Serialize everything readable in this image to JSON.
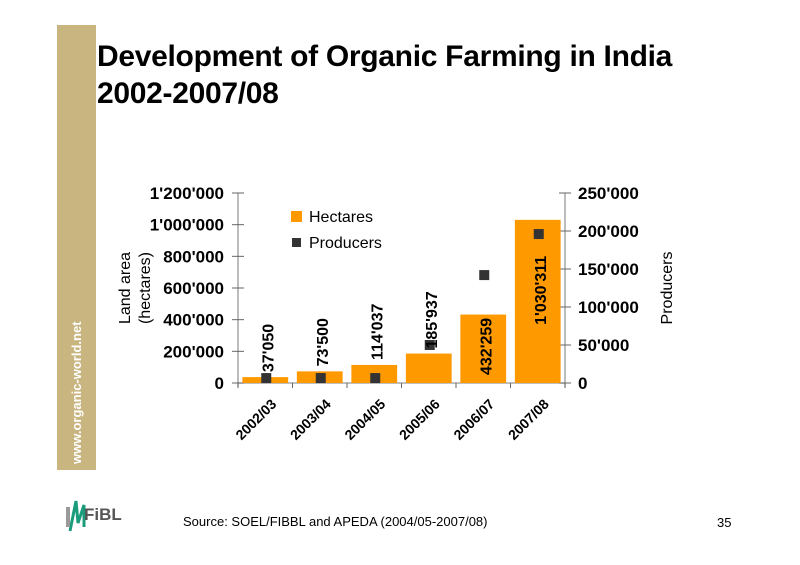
{
  "slide": {
    "title_line1": "Development of Organic Farming in India",
    "title_line2": "2002-2007/08",
    "side_url": "www.organic-world.net",
    "logo_text": "FiBL",
    "source": "Source: SOEL/FIBBL and APEDA (2004/05-2007/08)",
    "page_number": "35"
  },
  "colors": {
    "side_bar": "#c8b580",
    "hectares": "#ff9900",
    "producers": "#333333",
    "axis": "#999999"
  },
  "chart_data": {
    "type": "bar",
    "title": "Development of Organic Farming in India 2002-2007/08",
    "categories": [
      "2002/03",
      "2003/04",
      "2004/05",
      "2005/06",
      "2006/07",
      "2007/08"
    ],
    "series": [
      {
        "name": "Hectares",
        "type": "bar",
        "axis": "left",
        "values": [
          37050,
          73500,
          114037,
          185937,
          432259,
          1030311
        ],
        "labels": [
          "37'050",
          "73'500",
          "114'037",
          "185'937",
          "432'259",
          "1'030'311"
        ]
      },
      {
        "name": "Producers",
        "type": "scatter",
        "axis": "right",
        "values": [
          6500,
          6500,
          6500,
          50000,
          142000,
          196000
        ]
      }
    ],
    "ylabel_left": "Land area (hectares)",
    "ylabel_left_lines": [
      "Land area",
      "(hectares)"
    ],
    "ylabel_right": "Producers",
    "ylim_left": [
      0,
      1200000
    ],
    "ylim_right": [
      0,
      250000
    ],
    "yticks_left": [
      "0",
      "200'000",
      "400'000",
      "600'000",
      "800'000",
      "1'000'000",
      "1'200'000"
    ],
    "yticks_left_values": [
      0,
      200000,
      400000,
      600000,
      800000,
      1000000,
      1200000
    ],
    "yticks_right": [
      "0",
      "50'000",
      "100'000",
      "150'000",
      "200'000",
      "250'000"
    ],
    "yticks_right_values": [
      0,
      50000,
      100000,
      150000,
      200000,
      250000
    ],
    "legend": [
      "Hectares",
      "Producers"
    ],
    "legend_position": "top-left",
    "grid": false
  }
}
